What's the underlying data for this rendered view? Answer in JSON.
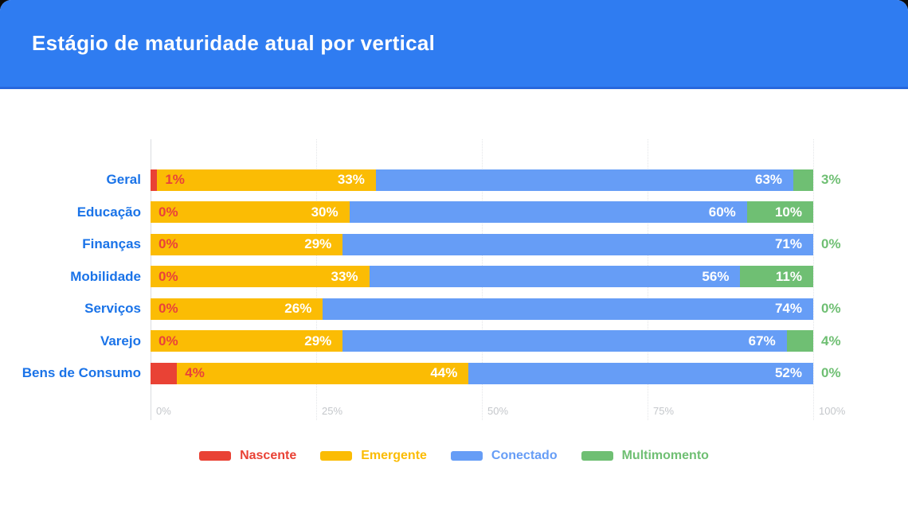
{
  "header": {
    "title": "Estágio de maturidade atual por vertical",
    "background_color": "#2f7cf1",
    "border_color": "#2767dd"
  },
  "chart_data": {
    "type": "bar",
    "stacked": true,
    "orientation": "horizontal",
    "title": "Estágio de maturidade atual por vertical",
    "categories": [
      "Geral",
      "Educação",
      "Finanças",
      "Mobilidade",
      "Serviços",
      "Varejo",
      "Bens de Consumo"
    ],
    "series": [
      {
        "name": "Nascente",
        "color": "#e94235",
        "values": [
          1,
          0,
          0,
          0,
          0,
          0,
          4
        ]
      },
      {
        "name": "Emergente",
        "color": "#fbbc04",
        "values": [
          33,
          30,
          29,
          33,
          26,
          29,
          44
        ]
      },
      {
        "name": "Conectado",
        "color": "#669df6",
        "values": [
          63,
          60,
          71,
          56,
          74,
          67,
          52
        ]
      },
      {
        "name": "Multimomento",
        "color": "#6fbf73",
        "values": [
          3,
          10,
          0,
          11,
          0,
          4,
          0
        ]
      }
    ],
    "x_ticks": [
      "0%",
      "25%",
      "50%",
      "75%",
      "100%"
    ],
    "xlim": [
      0,
      100
    ],
    "value_suffix": "%",
    "grid": "vertical",
    "legend_position": "bottom",
    "category_label_color": "#1a73e8",
    "tick_label_color": "#c4c7cb",
    "inside_label_color": "#ffffff",
    "nascente_label_color": "#e9423a"
  }
}
